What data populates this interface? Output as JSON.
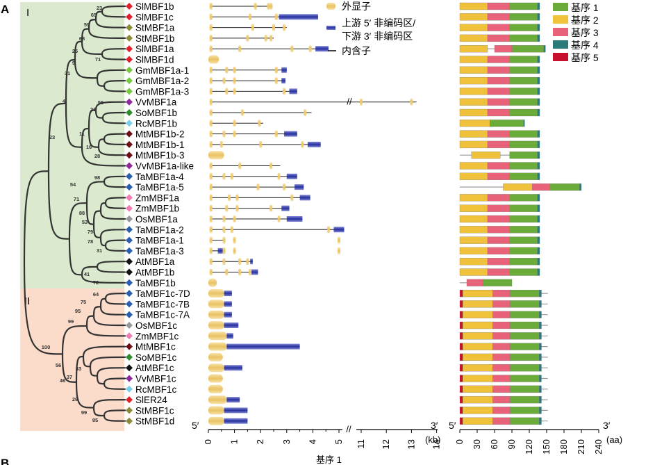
{
  "panel_label": "A",
  "panel_label_next": "B",
  "clades": [
    {
      "label": "I",
      "color": "#dbe9cf"
    },
    {
      "label": "II",
      "color": "#fbdccb"
    }
  ],
  "genes": [
    {
      "name": "SlMBF1b",
      "species_color": "#e0202a",
      "shape": "diamond"
    },
    {
      "name": "SlMBF1c",
      "species_color": "#e0202a",
      "shape": "diamond"
    },
    {
      "name": "StMBF1a",
      "species_color": "#8b8b3a",
      "shape": "diamond"
    },
    {
      "name": "StMBF1b",
      "species_color": "#8b8b3a",
      "shape": "diamond"
    },
    {
      "name": "SlMBF1a",
      "species_color": "#e0202a",
      "shape": "diamond"
    },
    {
      "name": "SlMBF1d",
      "species_color": "#e0202a",
      "shape": "diamond"
    },
    {
      "name": "GmMBF1a-1",
      "species_color": "#7ac943",
      "shape": "diamond"
    },
    {
      "name": "GmMBF1a-2",
      "species_color": "#7ac943",
      "shape": "diamond"
    },
    {
      "name": "GmMBF1a-3",
      "species_color": "#7ac943",
      "shape": "diamond"
    },
    {
      "name": "VvMBF1a",
      "species_color": "#8e2a9a",
      "shape": "diamond"
    },
    {
      "name": "SoMBF1b",
      "species_color": "#2e8b2e",
      "shape": "diamond"
    },
    {
      "name": "RcMBF1b",
      "species_color": "#7ccfe8",
      "shape": "diamond"
    },
    {
      "name": "MtMBF1b-2",
      "species_color": "#6b0f14",
      "shape": "diamond"
    },
    {
      "name": "MtMBF1b-1",
      "species_color": "#6b0f14",
      "shape": "diamond"
    },
    {
      "name": "MtMBF1b-3",
      "species_color": "#6b0f14",
      "shape": "diamond"
    },
    {
      "name": "VvMBF1a-like",
      "species_color": "#8e2a9a",
      "shape": "diamond"
    },
    {
      "name": "TaMBF1a-4",
      "species_color": "#2a5fb0",
      "shape": "diamond"
    },
    {
      "name": "TaMBF1a-5",
      "species_color": "#2a5fb0",
      "shape": "diamond"
    },
    {
      "name": "ZmMBF1a",
      "species_color": "#f27fb2",
      "shape": "diamond"
    },
    {
      "name": "ZmMBF1b",
      "species_color": "#f27fb2",
      "shape": "diamond"
    },
    {
      "name": "OsMBF1a",
      "species_color": "#999999",
      "shape": "diamond"
    },
    {
      "name": "TaMBF1a-2",
      "species_color": "#2a5fb0",
      "shape": "diamond"
    },
    {
      "name": "TaMBF1a-1",
      "species_color": "#2a5fb0",
      "shape": "diamond"
    },
    {
      "name": "TaMBF1a-3",
      "species_color": "#2a5fb0",
      "shape": "diamond"
    },
    {
      "name": "AtMBF1a",
      "species_color": "#111111",
      "shape": "diamond"
    },
    {
      "name": "AtMBF1b",
      "species_color": "#111111",
      "shape": "diamond"
    },
    {
      "name": "TaMBF1b",
      "species_color": "#2a5fb0",
      "shape": "diamond"
    },
    {
      "name": "TaMBF1c-7D",
      "species_color": "#2a5fb0",
      "shape": "diamond"
    },
    {
      "name": "TaMBF1c-7B",
      "species_color": "#2a5fb0",
      "shape": "diamond"
    },
    {
      "name": "TaMBF1c-7A",
      "species_color": "#2a5fb0",
      "shape": "diamond"
    },
    {
      "name": "OsMBF1c",
      "species_color": "#999999",
      "shape": "diamond"
    },
    {
      "name": "ZmMBF1c",
      "species_color": "#f27fb2",
      "shape": "diamond"
    },
    {
      "name": "MtMBF1c",
      "species_color": "#6b0f14",
      "shape": "diamond"
    },
    {
      "name": "SoMBF1c",
      "species_color": "#2e8b2e",
      "shape": "diamond"
    },
    {
      "name": "AtMBF1c",
      "species_color": "#111111",
      "shape": "diamond"
    },
    {
      "name": "VvMBF1c",
      "species_color": "#8e2a9a",
      "shape": "diamond"
    },
    {
      "name": "RcMBF1c",
      "species_color": "#7ccfe8",
      "shape": "diamond"
    },
    {
      "name": "SlER24",
      "species_color": "#e0202a",
      "shape": "diamond"
    },
    {
      "name": "StMBF1c",
      "species_color": "#8b8b3a",
      "shape": "diamond"
    },
    {
      "name": "StMBF1d",
      "species_color": "#8b8b3a",
      "shape": "diamond"
    }
  ],
  "bootstrap": [
    "23",
    "65",
    "59",
    "68",
    "25",
    "9",
    "71",
    "31",
    "4",
    "55",
    "21",
    "11",
    "16",
    "28",
    "23",
    "98",
    "54",
    "71",
    "88",
    "53",
    "79",
    "78",
    "31",
    "41",
    "72",
    "64",
    "75",
    "95",
    "99",
    "100",
    "56",
    "33",
    "37",
    "46",
    "29",
    "99",
    "85"
  ],
  "structure_legend": {
    "exon": "外显子",
    "utr": "上游 5′ 非编码区/\n下游 3′ 非编码区",
    "intron": "内含子"
  },
  "gene_axis": {
    "ticks": [
      "0",
      "0.5",
      "1",
      "1.5",
      "2",
      "2.5",
      "3",
      "3.5",
      "4",
      "4.5",
      "5",
      "11",
      "12",
      "13",
      "14"
    ],
    "left_end": "5′",
    "right_end": "3′",
    "unit": "(kb)"
  },
  "protein_axis": {
    "ticks": [
      "0",
      "30",
      "60",
      "90",
      "120",
      "150",
      "180",
      "210",
      "240"
    ],
    "left_end": "5′",
    "right_end": "3′",
    "unit": "(aa)"
  },
  "motif_legend": [
    {
      "label": "基序 1",
      "color": "#6aab3a"
    },
    {
      "label": "基序 2",
      "color": "#f0c13a"
    },
    {
      "label": "基序 3",
      "color": "#e8627a"
    },
    {
      "label": "基序 4",
      "color": "#2a7a7a"
    },
    {
      "label": "基序 5",
      "color": "#c8102e"
    }
  ],
  "colors": {
    "exon": "#f0d27a",
    "utr": "#2e3aa8",
    "intron": "#000000"
  },
  "caption": "基序 1"
}
